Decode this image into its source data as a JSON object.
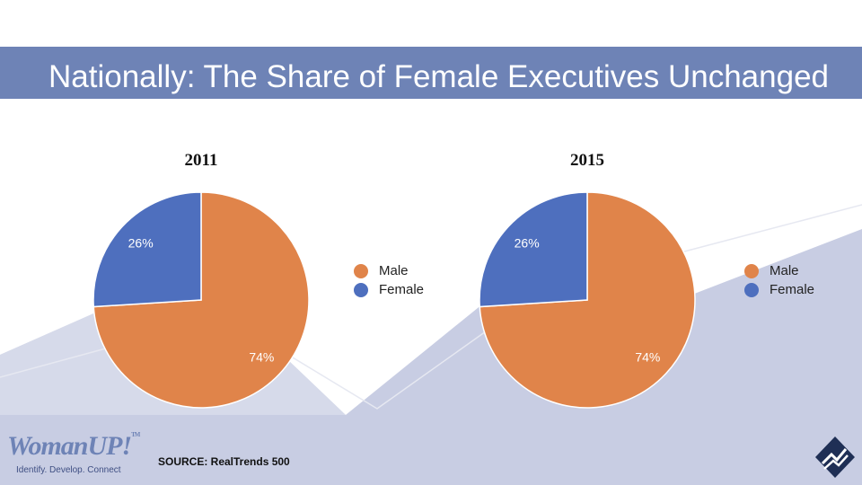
{
  "slide": {
    "title": "Nationally: The Share of Female Executives Unchanged",
    "source": "SOURCE:  RealTrends 500"
  },
  "logo": {
    "wordmark": "WomanUP!",
    "trademark": "TM",
    "tagline": "Identify. Develop. Connect"
  },
  "colors": {
    "male": "#e0844a",
    "female": "#4e6fbe",
    "title_band": "#6e83b6",
    "background_shape": "#c8cde3"
  },
  "chart_data": [
    {
      "type": "pie",
      "title": "2011",
      "categories": [
        "Male",
        "Female"
      ],
      "values": [
        74,
        26
      ],
      "data_labels": [
        "74%",
        "26%"
      ],
      "legend": [
        "Male",
        "Female"
      ],
      "legend_position": "right"
    },
    {
      "type": "pie",
      "title": "2015",
      "categories": [
        "Male",
        "Female"
      ],
      "values": [
        74,
        26
      ],
      "data_labels": [
        "74%",
        "26%"
      ],
      "legend": [
        "Male",
        "Female"
      ],
      "legend_position": "right"
    }
  ]
}
